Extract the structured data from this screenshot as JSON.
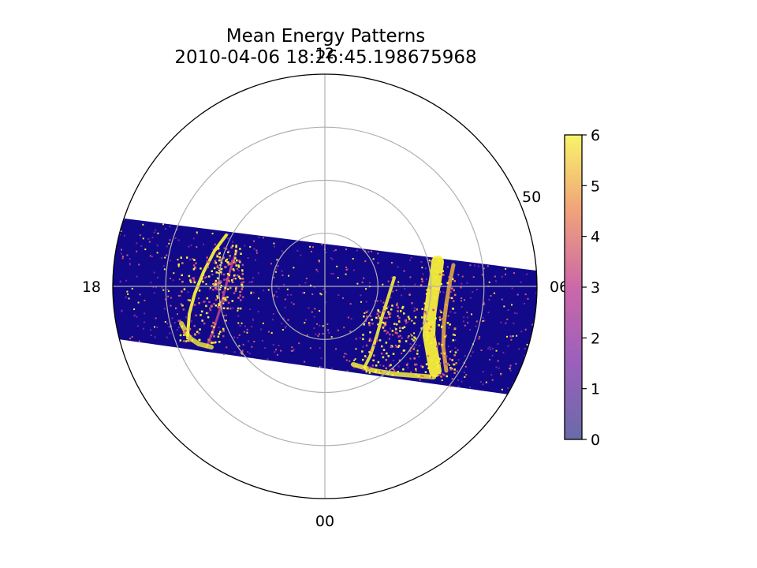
{
  "chart_data": {
    "type": "heatmap",
    "projection": "polar",
    "title": "Mean Energy Patterns",
    "subtitle": "2010-04-06 18:26:45.198675968",
    "theta_tick_labels": {
      "top": "12",
      "left": "18",
      "right": "06",
      "bottom": "00"
    },
    "radial_tick_label": "50",
    "radial_rings": 4,
    "grid": true,
    "colormap": "plasma",
    "colorbar": {
      "ticks": [
        "0",
        "1",
        "2",
        "3",
        "4",
        "5",
        "6"
      ],
      "range": [
        0,
        6
      ],
      "placement": "right"
    },
    "background_value": 0,
    "band": {
      "description_free": true
    },
    "colors": {
      "low": "#12088a",
      "mid": "#c7468a",
      "high": "#f8ef3a",
      "grid": "#b0b0b0"
    }
  }
}
